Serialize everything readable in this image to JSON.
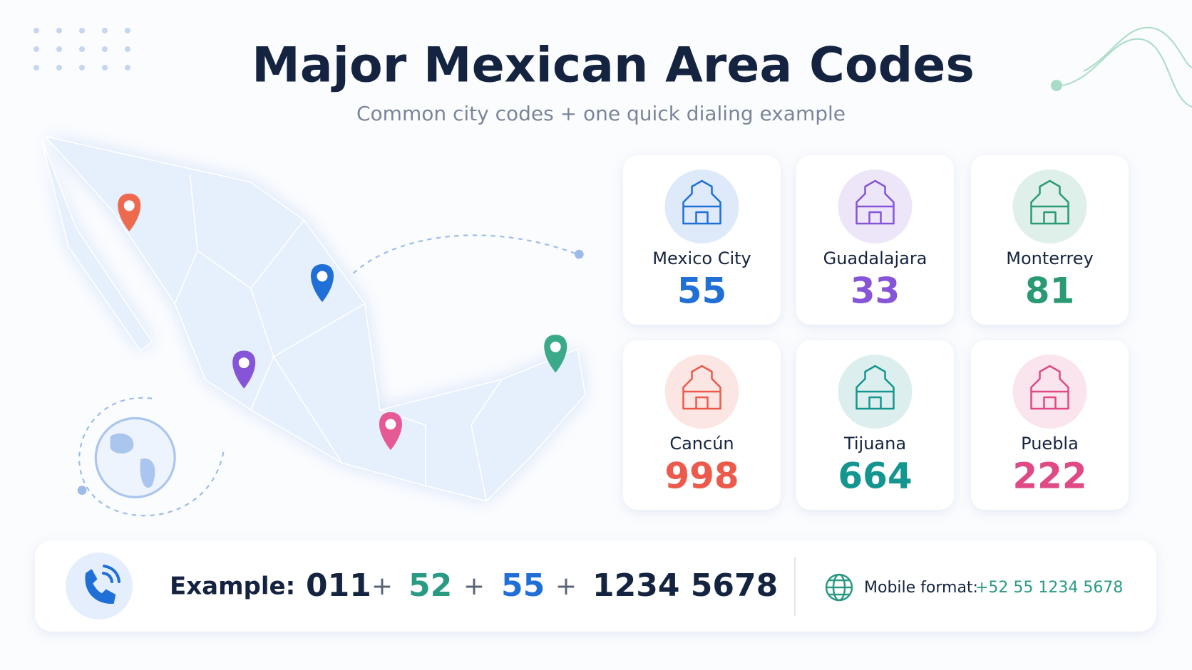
{
  "header": {
    "title": "Major Mexican Area Codes",
    "subtitle": "Common city codes + one quick dialing example"
  },
  "cities": [
    {
      "name": "Mexico City",
      "code": "55",
      "color": "#1f6fd6"
    },
    {
      "name": "Guadalajara",
      "code": "33",
      "color": "#8654d6"
    },
    {
      "name": "Monterrey",
      "code": "81",
      "color": "#2a9a73"
    },
    {
      "name": "Cancún",
      "code": "998",
      "color": "#ec5a4c"
    },
    {
      "name": "Tijuana",
      "code": "664",
      "color": "#13968f"
    },
    {
      "name": "Puebla",
      "code": "222",
      "color": "#df4a86"
    }
  ],
  "example": {
    "label": "Example:",
    "separator": "+",
    "parts": [
      {
        "text": "011",
        "color": "#14233f"
      },
      {
        "text": "52",
        "color": "#2a9a85"
      },
      {
        "text": "55",
        "color": "#1f6fd6"
      },
      {
        "text": "1234 5678",
        "color": "#14233f"
      }
    ],
    "mobile_label": "Mobile format:",
    "mobile_number": "+52 55 1234 5678"
  }
}
